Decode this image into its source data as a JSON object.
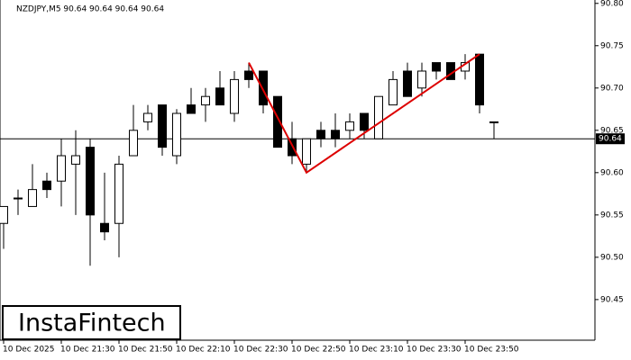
{
  "chart_data": {
    "type": "candlestick",
    "title": "NZDJPY,M5  90.64 90.64 90.64 90.64",
    "watermark": "InstaFintech",
    "categories": [
      "10 Dec 2025",
      null,
      null,
      null,
      "10 Dec 21:30",
      null,
      null,
      null,
      "10 Dec 21:50",
      null,
      null,
      null,
      "10 Dec 22:10",
      null,
      null,
      null,
      "10 Dec 22:30",
      null,
      null,
      null,
      "10 Dec 22:50",
      null,
      null,
      null,
      "10 Dec 23:10",
      null,
      null,
      null,
      "10 Dec 23:30",
      null,
      null,
      null,
      "10 Dec 23:50",
      null,
      null
    ],
    "open": [
      90.54,
      90.57,
      90.56,
      90.59,
      90.59,
      90.61,
      90.63,
      90.54,
      90.54,
      90.62,
      90.66,
      90.68,
      90.62,
      90.68,
      90.68,
      90.7,
      90.67,
      90.72,
      90.72,
      90.69,
      90.64,
      90.61,
      90.65,
      90.65,
      90.65,
      90.67,
      90.64,
      90.68,
      90.72,
      90.7,
      90.73,
      90.73,
      90.72,
      90.74,
      90.66
    ],
    "high": [
      90.56,
      90.58,
      90.61,
      90.6,
      90.64,
      90.65,
      90.64,
      90.6,
      90.62,
      90.68,
      90.68,
      90.68,
      90.675,
      90.7,
      90.7,
      90.72,
      90.72,
      90.73,
      90.72,
      90.69,
      90.66,
      90.64,
      90.66,
      90.67,
      90.67,
      90.67,
      90.69,
      90.72,
      90.73,
      90.73,
      90.73,
      90.73,
      90.74,
      90.74,
      90.66
    ],
    "low": [
      90.51,
      90.55,
      90.56,
      90.57,
      90.56,
      90.55,
      90.49,
      90.52,
      90.5,
      90.62,
      90.65,
      90.62,
      90.61,
      90.67,
      90.66,
      90.68,
      90.66,
      90.7,
      90.67,
      90.63,
      90.61,
      90.6,
      90.63,
      90.63,
      90.64,
      90.64,
      90.64,
      90.68,
      90.69,
      90.69,
      90.71,
      90.71,
      90.71,
      90.67,
      90.64
    ],
    "close": [
      90.56,
      90.57,
      90.58,
      90.58,
      90.62,
      90.62,
      90.55,
      90.53,
      90.61,
      90.65,
      90.67,
      90.63,
      90.67,
      90.67,
      90.69,
      90.68,
      90.71,
      90.71,
      90.68,
      90.63,
      90.62,
      90.64,
      90.64,
      90.64,
      90.66,
      90.65,
      90.69,
      90.71,
      90.69,
      90.72,
      90.72,
      90.71,
      90.73,
      90.68,
      90.66
    ],
    "up_color": "#ffffff",
    "down_color": "#000000",
    "current_price": 90.64,
    "pattern": {
      "color": "#dd0000",
      "x": [
        17,
        21,
        33
      ],
      "values": [
        90.73,
        90.6,
        90.74
      ]
    },
    "ylim": [
      90.402,
      90.804
    ],
    "yticks": [
      90.45,
      {
        "value": 90.5,
        "label": "90.50"
      },
      90.55,
      {
        "value": 90.6,
        "label": "90.60"
      },
      90.65,
      {
        "value": 90.7,
        "label": "90.70"
      },
      90.75,
      {
        "value": 90.8,
        "label": "90.80"
      }
    ]
  }
}
